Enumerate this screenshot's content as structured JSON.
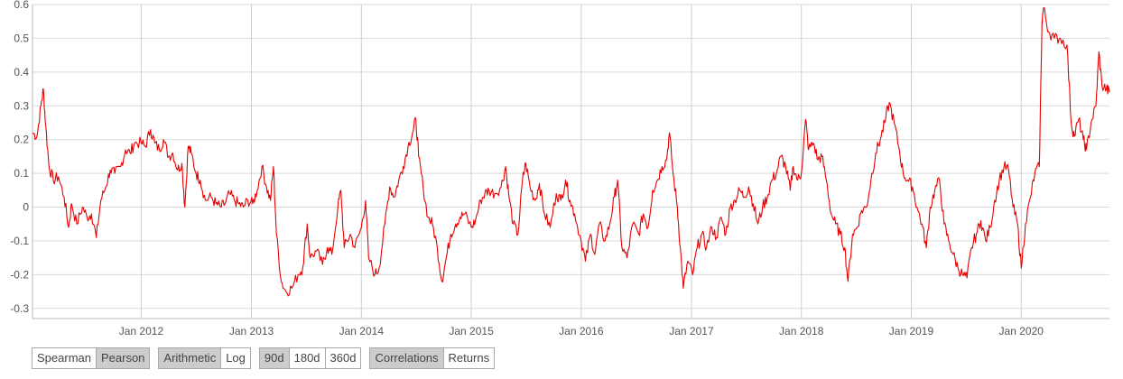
{
  "chart_data": {
    "type": "line",
    "title": "",
    "xlabel": "",
    "ylabel": "",
    "xlim": [
      "2011-01-05",
      "2020-10-20"
    ],
    "ylim": [
      -0.33,
      0.6
    ],
    "yticks": [
      "0.6",
      "0.5",
      "0.4",
      "0.3",
      "0.2",
      "0.1",
      "0",
      "-0.1",
      "-0.2",
      "-0.3"
    ],
    "xticks": [
      "Jan 2012",
      "Jan 2013",
      "Jan 2014",
      "Jan 2015",
      "Jan 2016",
      "Jan 2017",
      "Jan 2018",
      "Jan 2019",
      "Jan 2020"
    ],
    "grid": true,
    "series": [
      {
        "color": "#e60000",
        "points": [
          [
            "2011-01-05",
            0.22
          ],
          [
            "2011-01-20",
            0.21
          ],
          [
            "2011-02-02",
            0.3
          ],
          [
            "2011-02-10",
            0.35
          ],
          [
            "2011-02-18",
            0.24
          ],
          [
            "2011-03-01",
            0.12
          ],
          [
            "2011-03-15",
            0.08
          ],
          [
            "2011-04-01",
            0.09
          ],
          [
            "2011-04-20",
            0.03
          ],
          [
            "2011-05-05",
            -0.06
          ],
          [
            "2011-05-15",
            0.01
          ],
          [
            "2011-06-01",
            -0.05
          ],
          [
            "2011-06-20",
            0.0
          ],
          [
            "2011-07-05",
            -0.03
          ],
          [
            "2011-07-20",
            -0.02
          ],
          [
            "2011-08-05",
            -0.09
          ],
          [
            "2011-08-20",
            0.02
          ],
          [
            "2011-09-05",
            0.06
          ],
          [
            "2011-09-20",
            0.11
          ],
          [
            "2011-10-05",
            0.1
          ],
          [
            "2011-10-25",
            0.12
          ],
          [
            "2011-11-10",
            0.17
          ],
          [
            "2011-11-25",
            0.16
          ],
          [
            "2011-12-10",
            0.19
          ],
          [
            "2012-01-01",
            0.19
          ],
          [
            "2012-01-15",
            0.18
          ],
          [
            "2012-02-01",
            0.23
          ],
          [
            "2012-02-15",
            0.19
          ],
          [
            "2012-03-01",
            0.17
          ],
          [
            "2012-03-15",
            0.2
          ],
          [
            "2012-04-01",
            0.15
          ],
          [
            "2012-04-15",
            0.16
          ],
          [
            "2012-05-01",
            0.11
          ],
          [
            "2012-05-15",
            0.13
          ],
          [
            "2012-05-25",
            0.0
          ],
          [
            "2012-06-05",
            0.18
          ],
          [
            "2012-06-15",
            0.16
          ],
          [
            "2012-07-01",
            0.1
          ],
          [
            "2012-07-15",
            0.08
          ],
          [
            "2012-08-01",
            0.02
          ],
          [
            "2012-08-20",
            0.03
          ],
          [
            "2012-09-05",
            0.01
          ],
          [
            "2012-09-20",
            0.0
          ],
          [
            "2012-10-05",
            0.01
          ],
          [
            "2012-10-20",
            0.04
          ],
          [
            "2012-11-05",
            0.02
          ],
          [
            "2012-11-20",
            0.01
          ],
          [
            "2012-12-05",
            0.0
          ],
          [
            "2012-12-20",
            0.02
          ],
          [
            "2013-01-05",
            0.01
          ],
          [
            "2013-01-20",
            0.05
          ],
          [
            "2013-02-05",
            0.12
          ],
          [
            "2013-02-20",
            0.06
          ],
          [
            "2013-03-05",
            0.02
          ],
          [
            "2013-03-15",
            0.12
          ],
          [
            "2013-03-25",
            -0.08
          ],
          [
            "2013-04-10",
            -0.22
          ],
          [
            "2013-04-25",
            -0.25
          ],
          [
            "2013-05-15",
            -0.24
          ],
          [
            "2013-06-05",
            -0.2
          ],
          [
            "2013-06-20",
            -0.18
          ],
          [
            "2013-07-05",
            -0.05
          ],
          [
            "2013-07-15",
            -0.15
          ],
          [
            "2013-08-05",
            -0.13
          ],
          [
            "2013-08-25",
            -0.17
          ],
          [
            "2013-09-10",
            -0.12
          ],
          [
            "2013-09-25",
            -0.14
          ],
          [
            "2013-10-15",
            0.0
          ],
          [
            "2013-10-25",
            0.05
          ],
          [
            "2013-11-05",
            -0.12
          ],
          [
            "2013-11-25",
            -0.08
          ],
          [
            "2013-12-10",
            -0.12
          ],
          [
            "2014-01-01",
            -0.06
          ],
          [
            "2014-01-15",
            0.02
          ],
          [
            "2014-01-25",
            -0.15
          ],
          [
            "2014-02-15",
            -0.2
          ],
          [
            "2014-03-01",
            -0.18
          ],
          [
            "2014-03-20",
            -0.05
          ],
          [
            "2014-04-05",
            0.06
          ],
          [
            "2014-04-20",
            0.03
          ],
          [
            "2014-05-05",
            0.08
          ],
          [
            "2014-05-20",
            0.12
          ],
          [
            "2014-06-05",
            0.18
          ],
          [
            "2014-06-20",
            0.22
          ],
          [
            "2014-07-01",
            0.26
          ],
          [
            "2014-07-10",
            0.15
          ],
          [
            "2014-07-25",
            0.06
          ],
          [
            "2014-08-10",
            -0.03
          ],
          [
            "2014-08-25",
            -0.05
          ],
          [
            "2014-09-10",
            -0.12
          ],
          [
            "2014-09-25",
            -0.22
          ],
          [
            "2014-10-10",
            -0.15
          ],
          [
            "2014-10-25",
            -0.08
          ],
          [
            "2014-11-10",
            -0.05
          ],
          [
            "2014-11-25",
            -0.03
          ],
          [
            "2014-12-10",
            -0.02
          ],
          [
            "2015-01-01",
            -0.06
          ],
          [
            "2015-01-15",
            -0.04
          ],
          [
            "2015-02-01",
            0.02
          ],
          [
            "2015-02-15",
            0.04
          ],
          [
            "2015-03-01",
            0.05
          ],
          [
            "2015-03-20",
            0.04
          ],
          [
            "2015-04-10",
            0.06
          ],
          [
            "2015-04-25",
            0.12
          ],
          [
            "2015-05-05",
            0.04
          ],
          [
            "2015-05-20",
            -0.05
          ],
          [
            "2015-06-05",
            -0.08
          ],
          [
            "2015-06-20",
            0.08
          ],
          [
            "2015-07-01",
            0.13
          ],
          [
            "2015-07-15",
            0.06
          ],
          [
            "2015-08-01",
            0.02
          ],
          [
            "2015-08-15",
            0.07
          ],
          [
            "2015-09-01",
            -0.02
          ],
          [
            "2015-09-20",
            -0.06
          ],
          [
            "2015-10-10",
            0.04
          ],
          [
            "2015-10-25",
            0.02
          ],
          [
            "2015-11-10",
            0.08
          ],
          [
            "2015-11-25",
            0.02
          ],
          [
            "2015-12-10",
            -0.02
          ],
          [
            "2016-01-01",
            -0.1
          ],
          [
            "2016-01-15",
            -0.16
          ],
          [
            "2016-02-01",
            -0.08
          ],
          [
            "2016-02-15",
            -0.14
          ],
          [
            "2016-03-01",
            -0.05
          ],
          [
            "2016-03-20",
            -0.1
          ],
          [
            "2016-04-05",
            -0.05
          ],
          [
            "2016-04-20",
            0.03
          ],
          [
            "2016-05-01",
            0.08
          ],
          [
            "2016-05-15",
            -0.12
          ],
          [
            "2016-06-01",
            -0.15
          ],
          [
            "2016-06-20",
            -0.05
          ],
          [
            "2016-07-10",
            -0.08
          ],
          [
            "2016-07-25",
            -0.02
          ],
          [
            "2016-08-10",
            -0.06
          ],
          [
            "2016-08-25",
            0.05
          ],
          [
            "2016-09-10",
            0.08
          ],
          [
            "2016-09-25",
            0.12
          ],
          [
            "2016-10-10",
            0.14
          ],
          [
            "2016-10-20",
            0.22
          ],
          [
            "2016-11-01",
            0.1
          ],
          [
            "2016-11-15",
            0.0
          ],
          [
            "2016-11-25",
            -0.12
          ],
          [
            "2016-12-05",
            -0.24
          ],
          [
            "2016-12-20",
            -0.16
          ],
          [
            "2017-01-05",
            -0.2
          ],
          [
            "2017-01-20",
            -0.12
          ],
          [
            "2017-02-05",
            -0.08
          ],
          [
            "2017-02-20",
            -0.12
          ],
          [
            "2017-03-10",
            -0.06
          ],
          [
            "2017-03-25",
            -0.09
          ],
          [
            "2017-04-10",
            -0.03
          ],
          [
            "2017-04-25",
            -0.08
          ],
          [
            "2017-05-10",
            0.0
          ],
          [
            "2017-05-25",
            0.02
          ],
          [
            "2017-06-10",
            0.05
          ],
          [
            "2017-06-25",
            0.03
          ],
          [
            "2017-07-10",
            0.06
          ],
          [
            "2017-07-25",
            0.01
          ],
          [
            "2017-08-10",
            -0.05
          ],
          [
            "2017-08-25",
            0.0
          ],
          [
            "2017-09-10",
            0.03
          ],
          [
            "2017-09-25",
            0.08
          ],
          [
            "2017-10-10",
            0.1
          ],
          [
            "2017-10-25",
            0.15
          ],
          [
            "2017-11-10",
            0.12
          ],
          [
            "2017-11-25",
            0.05
          ],
          [
            "2017-12-05",
            0.12
          ],
          [
            "2017-12-20",
            0.08
          ],
          [
            "2018-01-01",
            0.1
          ],
          [
            "2018-01-15",
            0.26
          ],
          [
            "2018-01-25",
            0.17
          ],
          [
            "2018-02-10",
            0.19
          ],
          [
            "2018-02-25",
            0.14
          ],
          [
            "2018-03-10",
            0.15
          ],
          [
            "2018-03-25",
            0.08
          ],
          [
            "2018-04-10",
            -0.02
          ],
          [
            "2018-04-25",
            -0.05
          ],
          [
            "2018-05-10",
            -0.08
          ],
          [
            "2018-05-25",
            -0.12
          ],
          [
            "2018-06-05",
            -0.22
          ],
          [
            "2018-06-20",
            -0.08
          ],
          [
            "2018-07-05",
            -0.06
          ],
          [
            "2018-07-20",
            -0.01
          ],
          [
            "2018-08-05",
            0.0
          ],
          [
            "2018-08-20",
            0.08
          ],
          [
            "2018-09-05",
            0.16
          ],
          [
            "2018-09-20",
            0.2
          ],
          [
            "2018-10-05",
            0.25
          ],
          [
            "2018-10-20",
            0.31
          ],
          [
            "2018-11-05",
            0.25
          ],
          [
            "2018-11-20",
            0.18
          ],
          [
            "2018-12-05",
            0.1
          ],
          [
            "2018-12-20",
            0.08
          ],
          [
            "2019-01-05",
            0.06
          ],
          [
            "2019-01-20",
            0.0
          ],
          [
            "2019-02-05",
            -0.05
          ],
          [
            "2019-02-20",
            -0.12
          ],
          [
            "2019-03-05",
            0.0
          ],
          [
            "2019-03-20",
            0.05
          ],
          [
            "2019-04-05",
            0.08
          ],
          [
            "2019-04-20",
            -0.05
          ],
          [
            "2019-05-05",
            -0.1
          ],
          [
            "2019-05-20",
            -0.14
          ],
          [
            "2019-06-05",
            -0.18
          ],
          [
            "2019-06-20",
            -0.2
          ],
          [
            "2019-07-05",
            -0.21
          ],
          [
            "2019-07-20",
            -0.12
          ],
          [
            "2019-08-05",
            -0.08
          ],
          [
            "2019-08-20",
            -0.04
          ],
          [
            "2019-09-05",
            -0.1
          ],
          [
            "2019-09-20",
            -0.06
          ],
          [
            "2019-10-05",
            0.02
          ],
          [
            "2019-10-20",
            0.08
          ],
          [
            "2019-11-05",
            0.12
          ],
          [
            "2019-11-20",
            0.11
          ],
          [
            "2019-12-05",
            0.0
          ],
          [
            "2019-12-20",
            -0.05
          ],
          [
            "2020-01-01",
            -0.18
          ],
          [
            "2020-01-15",
            -0.05
          ],
          [
            "2020-02-01",
            0.03
          ],
          [
            "2020-02-15",
            0.1
          ],
          [
            "2020-03-01",
            0.12
          ],
          [
            "2020-03-10",
            0.55
          ],
          [
            "2020-03-15",
            0.59
          ],
          [
            "2020-04-01",
            0.52
          ],
          [
            "2020-04-20",
            0.5
          ],
          [
            "2020-05-10",
            0.5
          ],
          [
            "2020-06-01",
            0.48
          ],
          [
            "2020-06-15",
            0.25
          ],
          [
            "2020-06-25",
            0.21
          ],
          [
            "2020-07-10",
            0.26
          ],
          [
            "2020-07-25",
            0.2
          ],
          [
            "2020-08-05",
            0.17
          ],
          [
            "2020-08-20",
            0.25
          ],
          [
            "2020-09-05",
            0.3
          ],
          [
            "2020-09-15",
            0.46
          ],
          [
            "2020-09-25",
            0.36
          ],
          [
            "2020-10-10",
            0.35
          ],
          [
            "2020-10-20",
            0.34
          ]
        ]
      }
    ]
  },
  "controls": {
    "method_group": {
      "spearman": "Spearman",
      "pearson": "Pearson"
    },
    "scale_group": {
      "arithmetic": "Arithmetic",
      "log": "Log"
    },
    "window_group": {
      "d90": "90d",
      "d180": "180d",
      "d360": "360d"
    },
    "view_group": {
      "correlations": "Correlations",
      "returns": "Returns"
    }
  },
  "colors": {
    "line": "#e60000",
    "grid": "#d9d9d9",
    "active_button": "#cccccc"
  }
}
